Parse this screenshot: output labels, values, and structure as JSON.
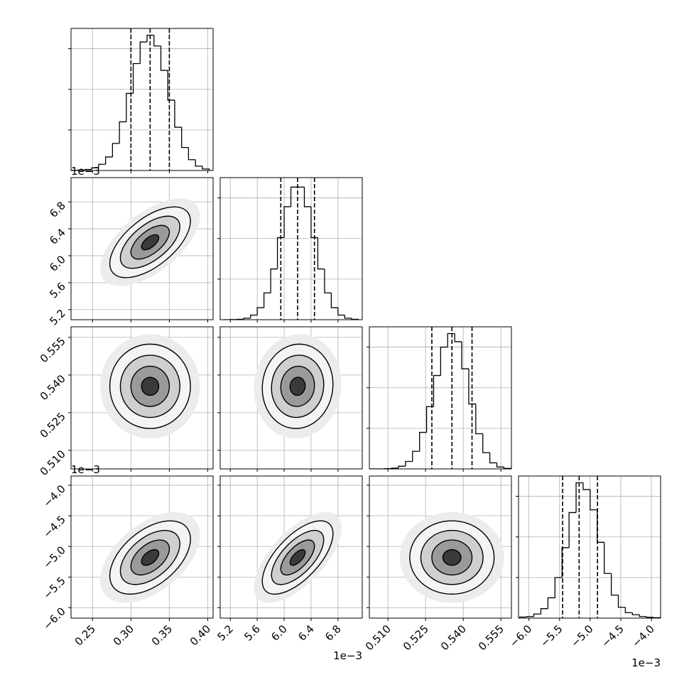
{
  "chart_data": {
    "type": "corner",
    "hist_ylim": [
      0,
      1050
    ],
    "hist_yticks": [
      300,
      600,
      900
    ],
    "grid": true,
    "params": [
      {
        "lim": [
          0.222,
          0.407
        ],
        "ticks": [
          0.25,
          {
            "value": 0.3,
            "label": "0.30"
          },
          0.35,
          {
            "value": 0.4,
            "label": "0.40"
          }
        ],
        "offset": null,
        "quantiles": [
          0.3,
          0.325,
          0.35
        ],
        "bins": [
          0.222,
          0.231,
          0.24,
          0.249,
          0.258,
          0.267,
          0.276,
          0.285,
          0.294,
          0.303,
          0.312,
          0.321,
          0.33,
          0.339,
          0.348,
          0.357,
          0.366,
          0.375,
          0.384,
          0.393,
          0.402
        ],
        "counts": [
          1,
          3,
          8,
          20,
          46,
          100,
          200,
          360,
          570,
          790,
          950,
          1000,
          920,
          740,
          520,
          320,
          170,
          80,
          32,
          11
        ]
      },
      {
        "lim": [
          5.05,
          7.16
        ],
        "ticks": [
          5.2,
          5.6,
          {
            "value": 6,
            "label": "6.0"
          },
          6.4,
          6.8
        ],
        "offset": "1e−3",
        "quantiles": [
          5.95,
          6.2,
          6.45
        ],
        "bins": [
          5.1,
          5.2,
          5.3,
          5.4,
          5.5,
          5.6,
          5.7,
          5.8,
          5.9,
          6.0,
          6.1,
          6.2,
          6.3,
          6.4,
          6.5,
          6.6,
          6.7,
          6.8,
          6.9,
          7.0,
          7.1
        ],
        "counts": [
          0,
          1,
          3,
          11,
          34,
          89,
          198,
          375,
          607,
          835,
          980,
          980,
          835,
          607,
          375,
          198,
          89,
          34,
          11,
          3
        ]
      },
      {
        "lim": [
          0.5026,
          0.5592
        ],
        "ticks": [
          {
            "value": 0.51,
            "label": "0.510"
          },
          0.525,
          {
            "value": 0.54,
            "label": "0.540"
          },
          0.555
        ],
        "offset": null,
        "quantiles": [
          0.5275,
          0.5355,
          0.5435
        ],
        "bins": [
          0.503,
          0.5058,
          0.5086,
          0.5114,
          0.5142,
          0.517,
          0.5198,
          0.5226,
          0.5254,
          0.5282,
          0.531,
          0.5338,
          0.5366,
          0.5394,
          0.5422,
          0.545,
          0.5478,
          0.5506,
          0.5534,
          0.5562,
          0.559
        ],
        "counts": [
          0,
          0,
          2,
          6,
          20,
          55,
          130,
          270,
          460,
          690,
          900,
          1000,
          940,
          740,
          480,
          260,
          120,
          45,
          14,
          4
        ]
      },
      {
        "lim": [
          -6.17,
          -3.85
        ],
        "ticks": [
          {
            "value": -6,
            "label": "−6.0"
          },
          {
            "value": -5.5,
            "label": "−5.5"
          },
          {
            "value": -5,
            "label": "−5.0"
          },
          {
            "value": -4.5,
            "label": "−4.5"
          },
          {
            "value": -4,
            "label": "−4.0"
          }
        ],
        "offset": "1e−3",
        "quantiles": [
          -5.45,
          -5.18,
          -4.88
        ],
        "bins": [
          -6.15,
          -6.035,
          -5.92,
          -5.805,
          -5.69,
          -5.575,
          -5.46,
          -5.345,
          -5.23,
          -5.115,
          -5.0,
          -4.885,
          -4.77,
          -4.655,
          -4.54,
          -4.425,
          -4.31,
          -4.195,
          -4.08,
          -3.965,
          -3.85
        ],
        "counts": [
          8,
          12,
          30,
          70,
          150,
          300,
          520,
          780,
          1000,
          950,
          800,
          560,
          330,
          170,
          80,
          40,
          25,
          12,
          6,
          3
        ]
      }
    ],
    "pairs": [
      {
        "x": 0,
        "y": 1,
        "correlation": 0.6
      },
      {
        "x": 0,
        "y": 2,
        "correlation": 0
      },
      {
        "x": 1,
        "y": 2,
        "correlation": 0.05
      },
      {
        "x": 0,
        "y": 3,
        "correlation": 0.5
      },
      {
        "x": 1,
        "y": 3,
        "correlation": 0.65
      },
      {
        "x": 2,
        "y": 3,
        "correlation": 0
      }
    ]
  }
}
